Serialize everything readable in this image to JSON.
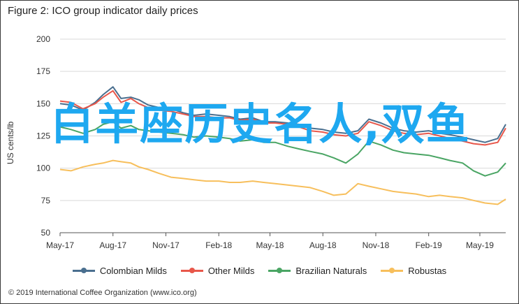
{
  "chart_data": {
    "type": "line",
    "title": "Figure 2: ICO group indicator daily prices",
    "ylabel": "US cents/lb",
    "ylim": [
      50,
      200
    ],
    "yticks": [
      50,
      75,
      100,
      125,
      150,
      175,
      200
    ],
    "grid": true,
    "legend_position": "bottom",
    "x_range": [
      "2017-05-01",
      "2019-06-15"
    ],
    "x_tick_labels": [
      "May-17",
      "Aug-17",
      "Nov-17",
      "Feb-18",
      "May-18",
      "Aug-18",
      "Nov-18",
      "Feb-19",
      "May-19"
    ],
    "x_tick_dates": [
      "2017-05-01",
      "2017-08-01",
      "2017-11-01",
      "2018-02-01",
      "2018-05-01",
      "2018-08-01",
      "2018-11-01",
      "2019-02-01",
      "2019-05-01"
    ],
    "series": [
      {
        "name": "Colombian Milds",
        "color": "#4a6f8f",
        "x": [
          "2017-05-01",
          "2017-05-20",
          "2017-06-10",
          "2017-07-01",
          "2017-07-15",
          "2017-08-01",
          "2017-08-15",
          "2017-09-01",
          "2017-09-15",
          "2017-10-01",
          "2017-10-20",
          "2017-11-10",
          "2017-12-01",
          "2017-12-20",
          "2018-01-10",
          "2018-02-01",
          "2018-02-20",
          "2018-03-10",
          "2018-04-01",
          "2018-04-20",
          "2018-05-10",
          "2018-06-01",
          "2018-06-20",
          "2018-07-10",
          "2018-08-01",
          "2018-08-20",
          "2018-09-10",
          "2018-10-01",
          "2018-10-20",
          "2018-11-10",
          "2018-12-01",
          "2018-12-20",
          "2019-01-10",
          "2019-02-01",
          "2019-02-20",
          "2019-03-10",
          "2019-04-01",
          "2019-04-20",
          "2019-05-10",
          "2019-06-01",
          "2019-06-15"
        ],
        "values": [
          150,
          149,
          145,
          151,
          157,
          163,
          154,
          155,
          153,
          149,
          147,
          146,
          143,
          141,
          142,
          141,
          140,
          138,
          139,
          136,
          136,
          135,
          134,
          131,
          130,
          128,
          127,
          129,
          138,
          135,
          131,
          129,
          128,
          129,
          127,
          126,
          124,
          122,
          120,
          123,
          134
        ]
      },
      {
        "name": "Other Milds",
        "color": "#e8574a",
        "x": [
          "2017-05-01",
          "2017-05-20",
          "2017-06-10",
          "2017-07-01",
          "2017-07-15",
          "2017-08-01",
          "2017-08-15",
          "2017-09-01",
          "2017-09-15",
          "2017-10-01",
          "2017-10-20",
          "2017-11-10",
          "2017-12-01",
          "2017-12-20",
          "2018-01-10",
          "2018-02-01",
          "2018-02-20",
          "2018-03-10",
          "2018-04-01",
          "2018-04-20",
          "2018-05-10",
          "2018-06-01",
          "2018-06-20",
          "2018-07-10",
          "2018-08-01",
          "2018-08-20",
          "2018-09-10",
          "2018-10-01",
          "2018-10-20",
          "2018-11-10",
          "2018-12-01",
          "2018-12-20",
          "2019-01-10",
          "2019-02-01",
          "2019-02-20",
          "2019-03-10",
          "2019-04-01",
          "2019-04-20",
          "2019-05-10",
          "2019-06-01",
          "2019-06-15"
        ],
        "values": [
          152,
          151,
          146,
          150,
          155,
          160,
          151,
          154,
          150,
          147,
          145,
          144,
          142,
          140,
          140,
          139,
          139,
          137,
          138,
          135,
          135,
          134,
          132,
          129,
          128,
          126,
          125,
          127,
          136,
          133,
          129,
          127,
          126,
          127,
          125,
          123,
          121,
          119,
          118,
          120,
          131
        ]
      },
      {
        "name": "Brazilian Naturals",
        "color": "#4aa564",
        "x": [
          "2017-05-01",
          "2017-05-20",
          "2017-06-10",
          "2017-07-01",
          "2017-07-15",
          "2017-08-01",
          "2017-08-15",
          "2017-09-01",
          "2017-09-15",
          "2017-10-01",
          "2017-10-20",
          "2017-11-10",
          "2017-12-01",
          "2017-12-20",
          "2018-01-10",
          "2018-02-01",
          "2018-02-20",
          "2018-03-10",
          "2018-04-01",
          "2018-04-20",
          "2018-05-10",
          "2018-06-01",
          "2018-06-20",
          "2018-07-10",
          "2018-08-01",
          "2018-08-20",
          "2018-09-10",
          "2018-10-01",
          "2018-10-20",
          "2018-11-10",
          "2018-12-01",
          "2018-12-20",
          "2019-01-10",
          "2019-02-01",
          "2019-02-20",
          "2019-03-10",
          "2019-04-01",
          "2019-04-20",
          "2019-05-10",
          "2019-06-01",
          "2019-06-15"
        ],
        "values": [
          132,
          130,
          127,
          130,
          134,
          136,
          131,
          133,
          130,
          129,
          128,
          127,
          126,
          124,
          125,
          124,
          123,
          121,
          122,
          120,
          120,
          117,
          115,
          113,
          111,
          108,
          104,
          111,
          121,
          118,
          114,
          112,
          111,
          110,
          108,
          106,
          104,
          98,
          94,
          97,
          104
        ]
      },
      {
        "name": "Robustas",
        "color": "#f7bf5c",
        "x": [
          "2017-05-01",
          "2017-05-20",
          "2017-06-10",
          "2017-07-01",
          "2017-07-15",
          "2017-08-01",
          "2017-08-15",
          "2017-09-01",
          "2017-09-15",
          "2017-10-01",
          "2017-10-20",
          "2017-11-10",
          "2017-12-01",
          "2017-12-20",
          "2018-01-10",
          "2018-02-01",
          "2018-02-20",
          "2018-03-10",
          "2018-04-01",
          "2018-04-20",
          "2018-05-10",
          "2018-06-01",
          "2018-06-20",
          "2018-07-10",
          "2018-08-01",
          "2018-08-20",
          "2018-09-10",
          "2018-10-01",
          "2018-10-20",
          "2018-11-10",
          "2018-12-01",
          "2018-12-20",
          "2019-01-10",
          "2019-02-01",
          "2019-02-20",
          "2019-03-10",
          "2019-04-01",
          "2019-04-20",
          "2019-05-10",
          "2019-06-01",
          "2019-06-15"
        ],
        "values": [
          99,
          98,
          101,
          103,
          104,
          106,
          105,
          104,
          101,
          99,
          96,
          93,
          92,
          91,
          90,
          90,
          89,
          89,
          90,
          89,
          88,
          87,
          86,
          85,
          82,
          79,
          80,
          88,
          86,
          84,
          82,
          81,
          80,
          78,
          79,
          78,
          77,
          75,
          73,
          72,
          76
        ]
      }
    ]
  },
  "overlay_text": "白羊座历史名人,双鱼",
  "copyright": "© 2019 International Coffee Organization (www.ico.org)"
}
